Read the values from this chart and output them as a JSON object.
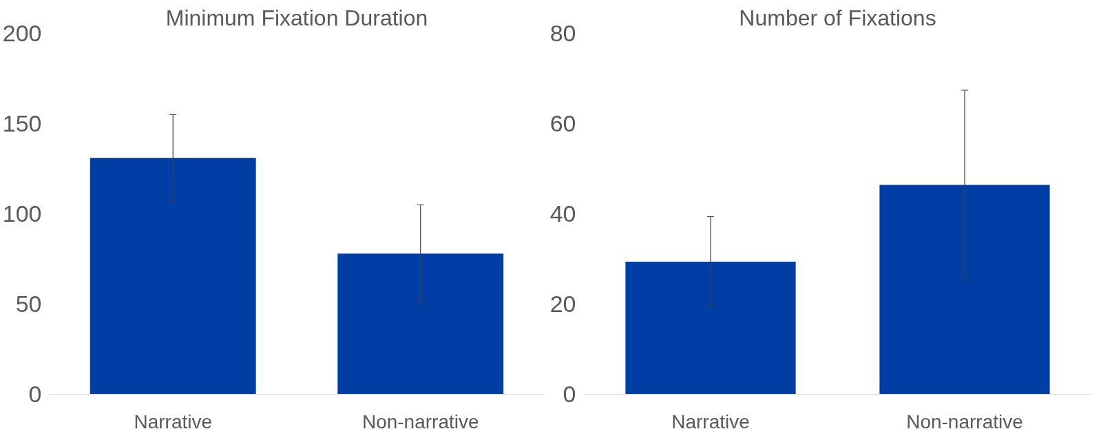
{
  "chart_data": [
    {
      "type": "bar",
      "title": "Minimum Fixation Duration",
      "categories": [
        "Narrative",
        "Non-narrative"
      ],
      "values": [
        131,
        78
      ],
      "errors": [
        24,
        27
      ],
      "color": "#003da5",
      "ylim": [
        0,
        200
      ],
      "yticks": [
        0,
        50,
        100,
        150,
        200
      ]
    },
    {
      "type": "bar",
      "title": "Number of Fixations",
      "categories": [
        "Narrative",
        "Non-narrative"
      ],
      "values": [
        29.4,
        46.4
      ],
      "errors": [
        10,
        21
      ],
      "color": "#003da5",
      "ylim": [
        0,
        80
      ],
      "yticks": [
        0,
        20,
        40,
        60,
        80
      ]
    }
  ]
}
